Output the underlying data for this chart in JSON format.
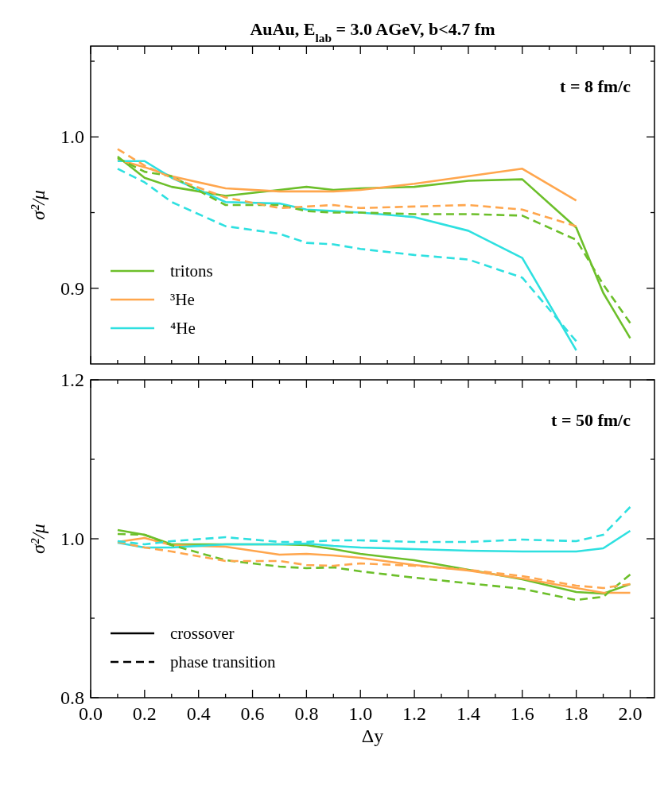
{
  "chart_data": [
    {
      "type": "line",
      "title": "AuAu, E$_{lab}$ = 3.0 AGeV, b<4.7 fm",
      "ylabel": "σ²/μ",
      "annotations": [
        "t = 8 fm/c"
      ],
      "x": [
        0.1,
        0.2,
        0.3,
        0.5,
        0.7,
        0.8,
        0.9,
        1.0,
        1.2,
        1.4,
        1.6,
        1.8,
        1.9,
        2.0
      ],
      "xlim": [
        0,
        2.09
      ],
      "xticks": [
        0,
        {
          "value": 0.1,
          "label": null
        },
        0.2,
        {
          "value": 0.3,
          "label": null
        },
        0.4,
        {
          "value": 0.5,
          "label": null
        },
        0.6,
        {
          "value": 0.7,
          "label": null
        },
        0.8,
        {
          "value": 0.9,
          "label": null
        },
        1,
        {
          "value": 1.1,
          "label": null
        },
        1.2,
        {
          "value": 1.3,
          "label": null
        },
        1.4,
        {
          "value": 1.5,
          "label": null
        },
        1.6,
        {
          "value": 1.7,
          "label": null
        },
        1.8,
        {
          "value": 1.9,
          "label": null
        },
        2
      ],
      "ylim": [
        0.85,
        1.06
      ],
      "yticks": [
        {
          "value": 0.9,
          "label": "0.9"
        },
        {
          "value": 0.95,
          "label": null
        },
        {
          "value": 1.0,
          "label": "1.0"
        },
        {
          "value": 1.05,
          "label": null
        }
      ],
      "tick_labels": "y",
      "legend": "bottom left",
      "series": [
        {
          "name": "tritons",
          "color": "#6cbf2a",
          "line_style": "solid",
          "values": [
            0.987,
            0.973,
            0.967,
            0.961,
            0.965,
            0.967,
            0.965,
            0.966,
            0.967,
            0.971,
            0.972,
            0.94,
            0.897,
            0.867
          ]
        },
        {
          "name": "³He",
          "color": "#ffa64d",
          "line_style": "solid",
          "values": [
            0.985,
            0.98,
            0.974,
            0.966,
            0.964,
            0.964,
            0.964,
            0.965,
            0.969,
            0.974,
            0.979,
            0.958,
            null,
            null
          ]
        },
        {
          "name": "⁴He",
          "color": "#2ee0e0",
          "line_style": "solid",
          "values": [
            0.984,
            0.984,
            0.973,
            0.957,
            0.956,
            0.952,
            0.951,
            0.95,
            0.947,
            0.938,
            0.92,
            0.859,
            null,
            null
          ]
        },
        {
          "color": "#6cbf2a",
          "line_style": "dashed",
          "values": [
            0.986,
            0.977,
            0.974,
            0.955,
            0.955,
            0.951,
            0.95,
            0.95,
            0.949,
            0.949,
            0.948,
            0.932,
            0.9025,
            0.877
          ]
        },
        {
          "color": "#ffa64d",
          "line_style": "dashed",
          "values": [
            0.992,
            0.981,
            0.973,
            0.96,
            0.953,
            0.954,
            0.955,
            0.953,
            0.954,
            0.955,
            0.952,
            0.941,
            null,
            null
          ]
        },
        {
          "color": "#2ee0e0",
          "line_style": "dashed",
          "values": [
            0.979,
            0.97,
            0.957,
            0.941,
            0.936,
            0.93,
            0.929,
            0.926,
            0.922,
            0.919,
            0.907,
            0.865,
            null,
            null
          ]
        }
      ]
    },
    {
      "type": "line",
      "xlabel": "Δy",
      "ylabel": "σ²/μ",
      "annotations": [
        "t = 50 fm/c"
      ],
      "x": [
        0.1,
        0.2,
        0.3,
        0.5,
        0.7,
        0.8,
        0.9,
        1.0,
        1.2,
        1.4,
        1.6,
        1.8,
        1.9,
        2.0
      ],
      "xlim": [
        0,
        2.09
      ],
      "xticks": [
        {
          "value": 0,
          "label": "0.0"
        },
        {
          "value": 0.1,
          "label": null
        },
        {
          "value": 0.2,
          "label": "0.2"
        },
        {
          "value": 0.3,
          "label": null
        },
        {
          "value": 0.4,
          "label": "0.4"
        },
        {
          "value": 0.5,
          "label": null
        },
        {
          "value": 0.6,
          "label": "0.6"
        },
        {
          "value": 0.7,
          "label": null
        },
        {
          "value": 0.8,
          "label": "0.8"
        },
        {
          "value": 0.9,
          "label": null
        },
        {
          "value": 1.0,
          "label": "1.0"
        },
        {
          "value": 1.1,
          "label": null
        },
        {
          "value": 1.2,
          "label": "1.2"
        },
        {
          "value": 1.3,
          "label": null
        },
        {
          "value": 1.4,
          "label": "1.4"
        },
        {
          "value": 1.5,
          "label": null
        },
        {
          "value": 1.6,
          "label": "1.6"
        },
        {
          "value": 1.7,
          "label": null
        },
        {
          "value": 1.8,
          "label": "1.8"
        },
        {
          "value": 1.9,
          "label": null
        },
        {
          "value": 2.0,
          "label": "2.0"
        }
      ],
      "ylim": [
        0.8,
        1.2
      ],
      "yticks": [
        {
          "value": 0.8,
          "label": "0.8"
        },
        {
          "value": 0.9,
          "label": null
        },
        {
          "value": 1.0,
          "label": "1.0"
        },
        {
          "value": 1.1,
          "label": null
        },
        {
          "value": 1.2,
          "label": "1.2"
        }
      ],
      "legend": "bottom left",
      "series": [
        {
          "color": "#6cbf2a",
          "line_style": "solid",
          "values": [
            1.011,
            1.005,
            0.993,
            0.993,
            0.993,
            0.992,
            0.987,
            0.981,
            0.973,
            0.961,
            0.949,
            0.933,
            0.931,
            0.943
          ]
        },
        {
          "color": "#ffa64d",
          "line_style": "solid",
          "values": [
            0.996,
            1.001,
            0.992,
            0.99,
            0.98,
            0.981,
            0.979,
            0.976,
            0.967,
            0.96,
            0.95,
            0.938,
            0.932,
            0.932
          ]
        },
        {
          "color": "#2ee0e0",
          "line_style": "solid",
          "values": [
            0.995,
            0.989,
            0.989,
            0.993,
            0.993,
            0.994,
            0.991,
            0.989,
            0.987,
            0.985,
            0.984,
            0.984,
            0.988,
            1.01
          ]
        },
        {
          "color": "#6cbf2a",
          "line_style": "dashed",
          "values": [
            1.006,
            1.005,
            0.992,
            0.973,
            0.965,
            0.963,
            0.964,
            0.959,
            0.951,
            0.944,
            0.937,
            0.923,
            0.927,
            0.955
          ]
        },
        {
          "color": "#ffa64d",
          "line_style": "dashed",
          "values": [
            0.996,
            0.989,
            0.984,
            0.972,
            0.972,
            0.967,
            0.966,
            0.969,
            0.966,
            0.961,
            0.953,
            0.941,
            0.938,
            0.943
          ]
        },
        {
          "color": "#2ee0e0",
          "line_style": "dashed",
          "values": [
            0.997,
            0.993,
            0.997,
            1.002,
            0.996,
            0.996,
            0.998,
            0.998,
            0.996,
            0.996,
            0.999,
            0.997,
            1.005,
            1.04
          ]
        },
        {
          "name": "crossover",
          "color": "#000000",
          "line_style": "solid",
          "values": [
            null,
            null,
            null,
            null,
            null,
            null,
            null,
            null,
            null,
            null,
            null,
            null,
            null,
            null
          ]
        },
        {
          "name": "phase transition",
          "color": "#000000",
          "line_style": "dashed",
          "values": [
            null,
            null,
            null,
            null,
            null,
            null,
            null,
            null,
            null,
            null,
            null,
            null,
            null,
            null
          ]
        }
      ]
    }
  ]
}
